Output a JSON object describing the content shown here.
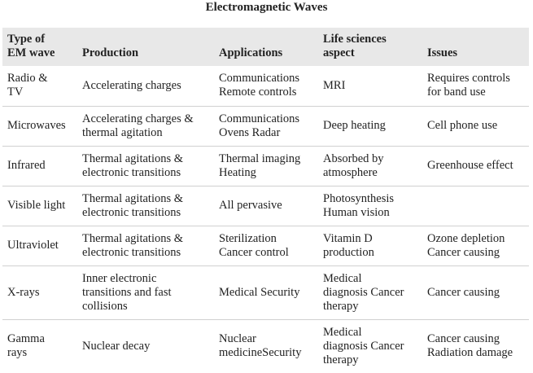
{
  "title": "Electromagnetic Waves",
  "headers": [
    "Type of\nEM wave",
    "Production",
    "Applications",
    "Life sciences\naspect",
    "Issues"
  ],
  "rows": [
    {
      "type": "Radio &\nTV",
      "production": "Accelerating charges",
      "applications": "Communications\nRemote controls",
      "life": "MRI",
      "issues": "Requires controls\nfor band use"
    },
    {
      "type": "Microwaves",
      "production": "Accelerating charges &\nthermal agitation",
      "applications": "Communications\nOvens Radar",
      "life": "Deep heating",
      "issues": "Cell phone use"
    },
    {
      "type": "Infrared",
      "production": "Thermal agitations &\nelectronic transitions",
      "applications": "Thermal imaging\nHeating",
      "life": "Absorbed by\natmosphere",
      "issues": "Greenhouse effect"
    },
    {
      "type": "Visible light",
      "production": "Thermal agitations &\nelectronic transitions",
      "applications": "All pervasive",
      "life": "Photosynthesis\nHuman vision",
      "issues": ""
    },
    {
      "type": "Ultraviolet",
      "production": "Thermal agitations &\nelectronic transitions",
      "applications": "Sterilization\nCancer control",
      "life": "Vitamin D\nproduction",
      "issues": "Ozone depletion\nCancer causing"
    },
    {
      "type": "X-rays",
      "production": "Inner electronic\ntransitions and fast\ncollisions",
      "applications": "Medical Security",
      "life": "Medical\ndiagnosis Cancer\ntherapy",
      "issues": "Cancer causing"
    },
    {
      "type": "Gamma\nrays",
      "production": "Nuclear decay",
      "applications": "Nuclear\nmedicineSecurity",
      "life": "Medical\ndiagnosis Cancer\ntherapy",
      "issues": "Cancer causing\nRadiation damage"
    }
  ]
}
